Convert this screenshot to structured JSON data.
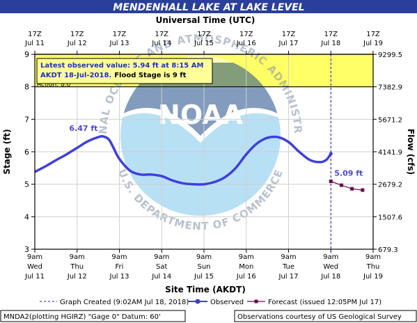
{
  "colors": {
    "header_bg": "#2a3f9b",
    "observed": "#3f3fdb",
    "forecast": "#6a0b4e",
    "action_band": "#ffff66",
    "flood_box_bg": "#ffff99",
    "flood_box_text": "#1f2fbf"
  },
  "header": {
    "title": "MENDENHALL LAKE AT LAKE LEVEL"
  },
  "watermark": {
    "logo_text": "NOAA",
    "ring_text": "NATIONAL OCEANIC AND ATMOSPHERIC ADMINISTRATION",
    "dept_text": "U.S. DEPARTMENT OF COMMERCE"
  },
  "chart_data": {
    "type": "line",
    "title": "MENDENHALL LAKE AT LAKE LEVEL",
    "top_axis": {
      "label": "Universal Time (UTC)",
      "ticks": [
        {
          "t": 0,
          "line1": "17Z",
          "line2": "Jul 11"
        },
        {
          "t": 1,
          "line1": "17Z",
          "line2": "Jul 12"
        },
        {
          "t": 2,
          "line1": "17Z",
          "line2": "Jul 13"
        },
        {
          "t": 3,
          "line1": "17Z",
          "line2": "Jul 14"
        },
        {
          "t": 4,
          "line1": "17Z",
          "line2": "Jul 15"
        },
        {
          "t": 5,
          "line1": "17Z",
          "line2": "Jul 16"
        },
        {
          "t": 6,
          "line1": "17Z",
          "line2": "Jul 17"
        },
        {
          "t": 7,
          "line1": "17Z",
          "line2": "Jul 18"
        },
        {
          "t": 8,
          "line1": "17Z",
          "line2": "Jul 19"
        }
      ]
    },
    "x_axis": {
      "label": "Site Time (AKDT)",
      "range": [
        0,
        8
      ],
      "ticks": [
        {
          "t": 0,
          "line1": "9am",
          "line2": "Wed",
          "line3": "Jul 11"
        },
        {
          "t": 1,
          "line1": "9am",
          "line2": "Thu",
          "line3": "Jul 12"
        },
        {
          "t": 2,
          "line1": "9am",
          "line2": "Fri",
          "line3": "Jul 13"
        },
        {
          "t": 3,
          "line1": "9am",
          "line2": "Sat",
          "line3": "Jul 14"
        },
        {
          "t": 4,
          "line1": "9am",
          "line2": "Sun",
          "line3": "Jul 15"
        },
        {
          "t": 5,
          "line1": "9am",
          "line2": "Mon",
          "line3": "Jul 16"
        },
        {
          "t": 6,
          "line1": "9am",
          "line2": "Tue",
          "line3": "Jul 17"
        },
        {
          "t": 7,
          "line1": "9am",
          "line2": "Wed",
          "line3": "Jul 18"
        },
        {
          "t": 8,
          "line1": "9am",
          "line2": "Thu",
          "line3": "Jul 19"
        }
      ]
    },
    "y_axis": {
      "label": "Stage (ft)",
      "range": [
        3,
        9
      ],
      "ticks": [
        "3",
        "4",
        "5",
        "6",
        "7",
        "8",
        "9"
      ]
    },
    "y2_axis": {
      "label": "Flow (cfs)",
      "ticks": [
        {
          "stage": 3,
          "label": "679.3"
        },
        {
          "stage": 4,
          "label": "1507.6"
        },
        {
          "stage": 5,
          "label": "2679.2"
        },
        {
          "stage": 6,
          "label": "4141.9"
        },
        {
          "stage": 7,
          "label": "5671.2"
        },
        {
          "stage": 8,
          "label": "7382.9"
        },
        {
          "stage": 9,
          "label": "9299.5"
        }
      ]
    },
    "grid": true,
    "action_stage": 8,
    "action_label": "Action: 8.0'",
    "flood_stage": 9,
    "flood_box": {
      "line1": "Latest observed value: 5.94 ft at 8:15 AM",
      "line2": "AKDT 18-Jul-2018.",
      "line3": "Flood Stage is 9 ft"
    },
    "created_t": 7.0,
    "series": [
      {
        "name": "Observed",
        "points": [
          [
            0.0,
            5.38
          ],
          [
            0.25,
            5.55
          ],
          [
            0.5,
            5.74
          ],
          [
            0.75,
            5.92
          ],
          [
            1.0,
            6.12
          ],
          [
            1.25,
            6.32
          ],
          [
            1.5,
            6.45
          ],
          [
            1.62,
            6.47
          ],
          [
            1.75,
            6.38
          ],
          [
            1.85,
            6.15
          ],
          [
            2.0,
            5.78
          ],
          [
            2.25,
            5.42
          ],
          [
            2.5,
            5.3
          ],
          [
            2.75,
            5.3
          ],
          [
            3.0,
            5.25
          ],
          [
            3.25,
            5.12
          ],
          [
            3.5,
            5.03
          ],
          [
            3.75,
            5.0
          ],
          [
            4.0,
            5.0
          ],
          [
            4.25,
            5.07
          ],
          [
            4.5,
            5.22
          ],
          [
            4.75,
            5.5
          ],
          [
            5.0,
            5.92
          ],
          [
            5.25,
            6.25
          ],
          [
            5.5,
            6.43
          ],
          [
            5.75,
            6.45
          ],
          [
            6.0,
            6.3
          ],
          [
            6.25,
            6.0
          ],
          [
            6.5,
            5.75
          ],
          [
            6.75,
            5.68
          ],
          [
            6.9,
            5.76
          ],
          [
            7.0,
            5.94
          ]
        ]
      },
      {
        "name": "Forecast (issued 12:05PM Jul 17)",
        "points": [
          [
            7.0,
            5.09
          ],
          [
            7.25,
            4.97
          ],
          [
            7.5,
            4.86
          ],
          [
            7.75,
            4.82
          ]
        ]
      }
    ],
    "annotations": [
      {
        "t": 1.62,
        "value": 6.47,
        "text": "6.47 ft"
      },
      {
        "t": 7.0,
        "value": 5.09,
        "text": "5.09 ft"
      }
    ],
    "legend": {
      "position": "bottom",
      "created": "Graph Created (9:02AM Jul 18, 2018)",
      "observed": "Observed",
      "forecast": "Forecast (issued 12:05PM Jul 17)"
    }
  },
  "footer": {
    "left": "MNDA2(plotting HGIRZ) \"Gage 0\" Datum: 60'",
    "right": "Observations courtesy of US Geological Survey"
  }
}
